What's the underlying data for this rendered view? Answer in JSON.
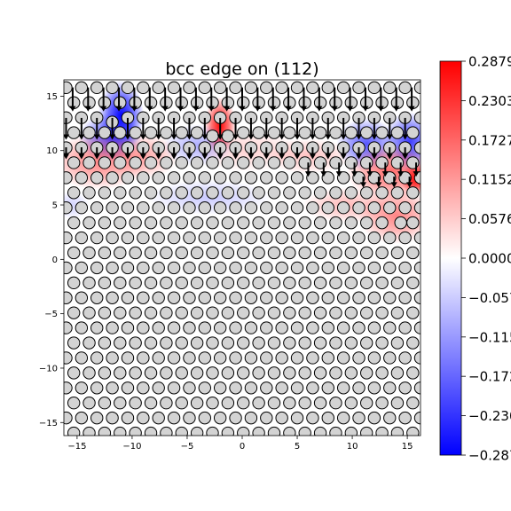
{
  "chart_data": {
    "type": "heatmap",
    "title": "bcc edge on (112)",
    "xlabel": "",
    "ylabel": "",
    "xlim": [
      -16.2,
      16.2
    ],
    "ylim": [
      -16.2,
      16.5
    ],
    "grid": false,
    "x_ticks": [
      -15,
      -10,
      -5,
      0,
      5,
      10,
      15
    ],
    "y_ticks": [
      -15,
      -10,
      -5,
      0,
      5,
      10,
      15
    ],
    "x_tick_labels": [
      "−15",
      "−10",
      "−5",
      "0",
      "5",
      "10",
      "15"
    ],
    "y_tick_labels": [
      "−15",
      "−10",
      "−5",
      "0",
      "5",
      "10",
      "15"
    ],
    "colormap": "bwr",
    "colorbar": {
      "range": [
        -0.2879,
        0.2879
      ],
      "ticks": [
        0.2879,
        0.2303,
        0.1727,
        0.1152,
        0.0576,
        0.0,
        -0.0576,
        -0.1152,
        -0.1727,
        -0.2303,
        -0.2879
      ],
      "tick_labels": [
        "0.2879",
        "0.2303",
        "0.1727",
        "0.1152",
        "0.0576",
        "0.0000",
        "−0.0576",
        "−0.1152",
        "−0.1727",
        "−0.2303",
        "−0.2879"
      ],
      "colors": {
        "max": "#ff0000",
        "mid": "#ffffff",
        "min": "#0000ff"
      }
    },
    "atom_lattice": {
      "x_spacing": 1.4,
      "row_spacing": 1.38,
      "row_y_first": 15.78,
      "row_count": 24,
      "x_first": -16.0,
      "odd_row_offset": 0.7,
      "atom_radius": 0.5,
      "atom_fill": "#d3d3d3"
    },
    "atom_shifts": [
      {
        "x": -11.2,
        "y": 13.0,
        "dx": 0.0,
        "dy": -0.4
      },
      {
        "x": -2.0,
        "y": 12.0,
        "dx": 0.0,
        "dy": -0.3
      },
      {
        "x": 13.7,
        "y": 3.3,
        "dx": 0.3,
        "dy": 0.0
      }
    ],
    "displacement_arrows": {
      "rows": [
        {
          "y": 15.8,
          "x_start": -15.4,
          "x_end": 15.6,
          "step": 1.4,
          "dx": 0.0,
          "dy": -2.2
        },
        {
          "y": 13.0,
          "x_start": -16.0,
          "x_end": 16.0,
          "step": 1.4,
          "dx": 0.0,
          "dy": -2.0
        },
        {
          "y": 10.3,
          "x_start": -16.0,
          "x_end": 16.0,
          "step": 1.4,
          "dx": 0.0,
          "dy": -1.1
        },
        {
          "y": 8.9,
          "x_start": 6.0,
          "x_end": 16.0,
          "step": 1.4,
          "dx": 0.0,
          "dy": -1.3
        },
        {
          "y": 7.6,
          "x_start": 11.0,
          "x_end": 16.0,
          "step": 1.4,
          "dx": 0.0,
          "dy": -1.0
        }
      ],
      "color": "#000000"
    },
    "field_blobs": [
      {
        "x": -11.0,
        "y": 13.2,
        "sx": 1.3,
        "sy": 2.0,
        "value": -0.2879
      },
      {
        "x": -12.0,
        "y": 11.2,
        "sx": 1.8,
        "sy": 1.4,
        "value": -0.2
      },
      {
        "x": -13.0,
        "y": 9.0,
        "sx": 2.8,
        "sy": 1.6,
        "value": 0.14
      },
      {
        "x": -9.0,
        "y": 9.5,
        "sx": 2.0,
        "sy": 1.3,
        "value": 0.1
      },
      {
        "x": -2.0,
        "y": 12.3,
        "sx": 0.9,
        "sy": 1.6,
        "value": 0.28
      },
      {
        "x": -4.0,
        "y": 10.5,
        "sx": 2.0,
        "sy": 1.2,
        "value": -0.09
      },
      {
        "x": -3.0,
        "y": 5.7,
        "sx": 3.5,
        "sy": 1.0,
        "value": -0.06
      },
      {
        "x": 0.5,
        "y": 10.0,
        "sx": 3.0,
        "sy": 1.2,
        "value": 0.05
      },
      {
        "x": 11.3,
        "y": 10.6,
        "sx": 1.7,
        "sy": 1.5,
        "value": -0.19
      },
      {
        "x": 15.2,
        "y": 10.8,
        "sx": 1.5,
        "sy": 1.7,
        "value": -0.22
      },
      {
        "x": 13.5,
        "y": 8.0,
        "sx": 2.5,
        "sy": 1.6,
        "value": 0.17
      },
      {
        "x": 15.8,
        "y": 7.4,
        "sx": 0.9,
        "sy": 0.9,
        "value": 0.28
      },
      {
        "x": 14.0,
        "y": 4.0,
        "sx": 2.2,
        "sy": 1.6,
        "value": 0.14
      },
      {
        "x": 9.5,
        "y": 5.0,
        "sx": 2.5,
        "sy": 1.0,
        "value": 0.08
      },
      {
        "x": 6.0,
        "y": 9.5,
        "sx": 2.5,
        "sy": 1.0,
        "value": 0.07
      },
      {
        "x": -15.5,
        "y": 5.0,
        "sx": 1.0,
        "sy": 0.8,
        "value": -0.05
      }
    ]
  }
}
